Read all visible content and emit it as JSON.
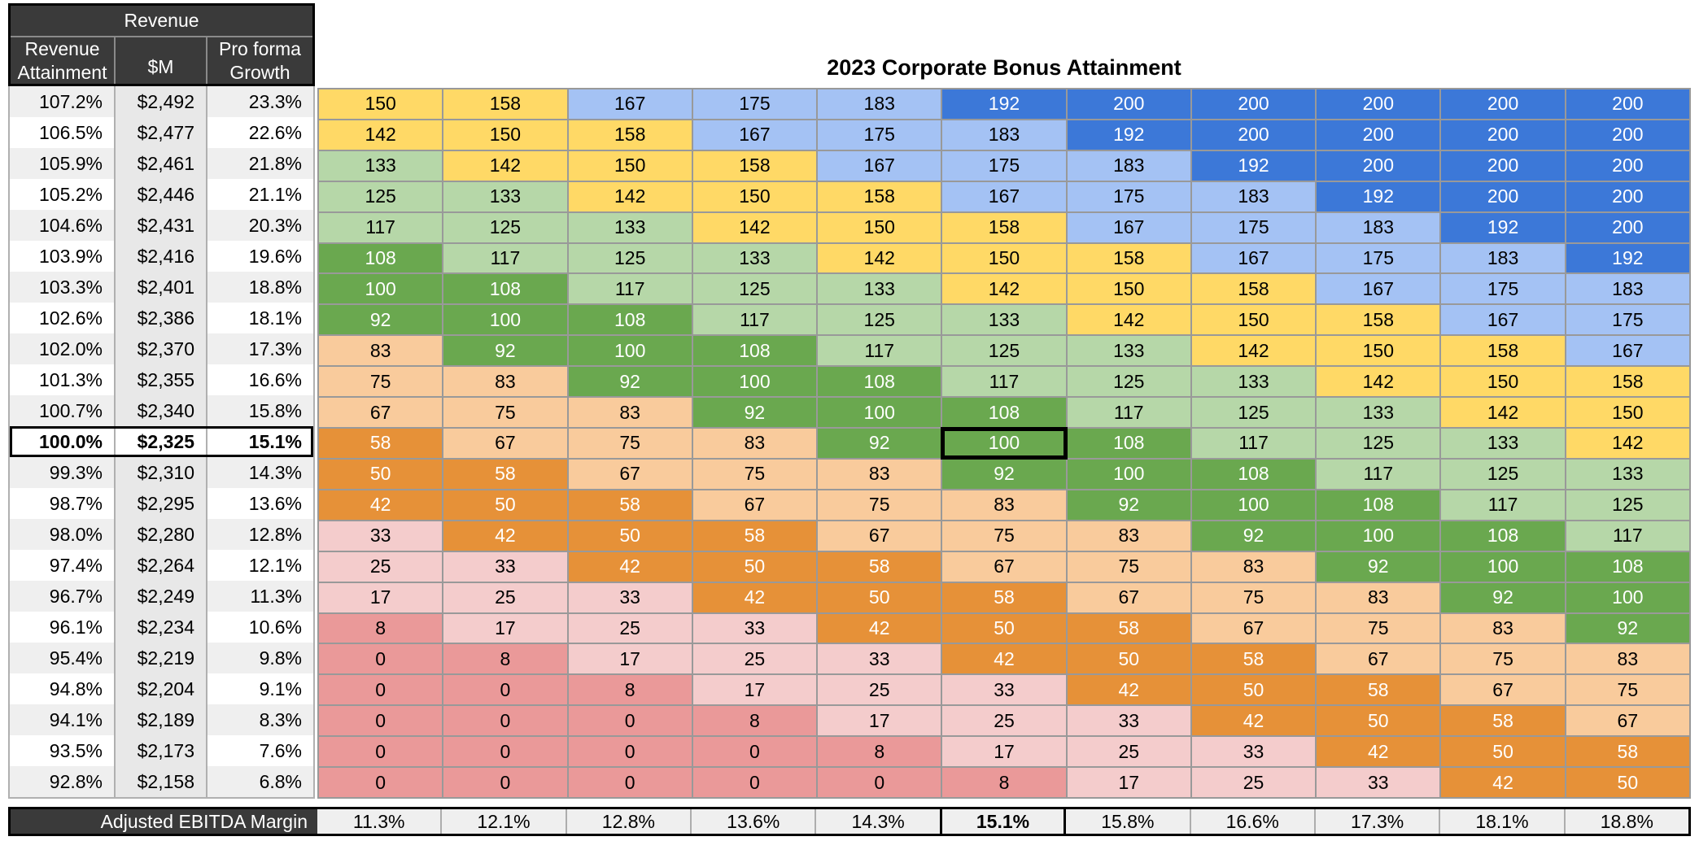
{
  "title": "2023 Corporate Bonus Attainment",
  "left_table": {
    "group_header": "Revenue",
    "columns": [
      "Revenue Attainment",
      "$M",
      "Pro forma Growth"
    ],
    "bold_row_index": 11,
    "rows": [
      {
        "a": "107.2%",
        "m": "$2,492",
        "g": "23.3%"
      },
      {
        "a": "106.5%",
        "m": "$2,477",
        "g": "22.6%"
      },
      {
        "a": "105.9%",
        "m": "$2,461",
        "g": "21.8%"
      },
      {
        "a": "105.2%",
        "m": "$2,446",
        "g": "21.1%"
      },
      {
        "a": "104.6%",
        "m": "$2,431",
        "g": "20.3%"
      },
      {
        "a": "103.9%",
        "m": "$2,416",
        "g": "19.6%"
      },
      {
        "a": "103.3%",
        "m": "$2,401",
        "g": "18.8%"
      },
      {
        "a": "102.6%",
        "m": "$2,386",
        "g": "18.1%"
      },
      {
        "a": "102.0%",
        "m": "$2,370",
        "g": "17.3%"
      },
      {
        "a": "101.3%",
        "m": "$2,355",
        "g": "16.6%"
      },
      {
        "a": "100.7%",
        "m": "$2,340",
        "g": "15.8%"
      },
      {
        "a": "100.0%",
        "m": "$2,325",
        "g": "15.1%"
      },
      {
        "a": "99.3%",
        "m": "$2,310",
        "g": "14.3%"
      },
      {
        "a": "98.7%",
        "m": "$2,295",
        "g": "13.6%"
      },
      {
        "a": "98.0%",
        "m": "$2,280",
        "g": "12.8%"
      },
      {
        "a": "97.4%",
        "m": "$2,264",
        "g": "12.1%"
      },
      {
        "a": "96.7%",
        "m": "$2,249",
        "g": "11.3%"
      },
      {
        "a": "96.1%",
        "m": "$2,234",
        "g": "10.6%"
      },
      {
        "a": "95.4%",
        "m": "$2,219",
        "g": "9.8%"
      },
      {
        "a": "94.8%",
        "m": "$2,204",
        "g": "9.1%"
      },
      {
        "a": "94.1%",
        "m": "$2,189",
        "g": "8.3%"
      },
      {
        "a": "93.5%",
        "m": "$2,173",
        "g": "7.6%"
      },
      {
        "a": "92.8%",
        "m": "$2,158",
        "g": "6.8%"
      }
    ]
  },
  "matrix": {
    "selected": {
      "row": 11,
      "col": 5
    },
    "rows": [
      [
        150,
        158,
        167,
        175,
        183,
        192,
        200,
        200,
        200,
        200,
        200
      ],
      [
        142,
        150,
        158,
        167,
        175,
        183,
        192,
        200,
        200,
        200,
        200
      ],
      [
        133,
        142,
        150,
        158,
        167,
        175,
        183,
        192,
        200,
        200,
        200
      ],
      [
        125,
        133,
        142,
        150,
        158,
        167,
        175,
        183,
        192,
        200,
        200
      ],
      [
        117,
        125,
        133,
        142,
        150,
        158,
        167,
        175,
        183,
        192,
        200
      ],
      [
        108,
        117,
        125,
        133,
        142,
        150,
        158,
        167,
        175,
        183,
        192
      ],
      [
        100,
        108,
        117,
        125,
        133,
        142,
        150,
        158,
        167,
        175,
        183
      ],
      [
        92,
        100,
        108,
        117,
        125,
        133,
        142,
        150,
        158,
        167,
        175
      ],
      [
        83,
        92,
        100,
        108,
        117,
        125,
        133,
        142,
        150,
        158,
        167
      ],
      [
        75,
        83,
        92,
        100,
        108,
        117,
        125,
        133,
        142,
        150,
        158
      ],
      [
        67,
        75,
        83,
        92,
        100,
        108,
        117,
        125,
        133,
        142,
        150
      ],
      [
        58,
        67,
        75,
        83,
        92,
        100,
        108,
        117,
        125,
        133,
        142
      ],
      [
        50,
        58,
        67,
        75,
        83,
        92,
        100,
        108,
        117,
        125,
        133
      ],
      [
        42,
        50,
        58,
        67,
        75,
        83,
        92,
        100,
        108,
        117,
        125
      ],
      [
        33,
        42,
        50,
        58,
        67,
        75,
        83,
        92,
        100,
        108,
        117
      ],
      [
        25,
        33,
        42,
        50,
        58,
        67,
        75,
        83,
        92,
        100,
        108
      ],
      [
        17,
        25,
        33,
        42,
        50,
        58,
        67,
        75,
        83,
        92,
        100
      ],
      [
        8,
        17,
        25,
        33,
        42,
        50,
        58,
        67,
        75,
        83,
        92
      ],
      [
        0,
        8,
        17,
        25,
        33,
        42,
        50,
        58,
        67,
        75,
        83
      ],
      [
        0,
        0,
        8,
        17,
        25,
        33,
        42,
        50,
        58,
        67,
        75
      ],
      [
        0,
        0,
        0,
        8,
        17,
        25,
        33,
        42,
        50,
        58,
        67
      ],
      [
        0,
        0,
        0,
        0,
        8,
        17,
        25,
        33,
        42,
        50,
        58
      ],
      [
        0,
        0,
        0,
        0,
        0,
        8,
        17,
        25,
        33,
        42,
        50
      ]
    ]
  },
  "footer": {
    "label": "Adjusted EBITDA Margin",
    "bold_index": 5,
    "values": [
      "11.3%",
      "12.1%",
      "12.8%",
      "13.6%",
      "14.3%",
      "15.1%",
      "15.8%",
      "16.6%",
      "17.3%",
      "18.1%",
      "18.8%"
    ]
  },
  "colors": {
    "band_blue": "#3c78d8",
    "band_light_blue": "#a4c2f4",
    "band_yellow": "#ffd966",
    "band_light_green": "#b6d7a8",
    "band_green": "#6aa84f",
    "band_light_orange": "#f9cb9c",
    "band_orange": "#e69138",
    "band_light_pink": "#f4cccc",
    "band_pink": "#ea9999",
    "header_bg": "#3a3a3a",
    "stripe": "#efefef",
    "dollar_col_bg": "#e8e8e8",
    "white": "#ffffff",
    "grid": "#999999",
    "selection_border": "#000000"
  }
}
